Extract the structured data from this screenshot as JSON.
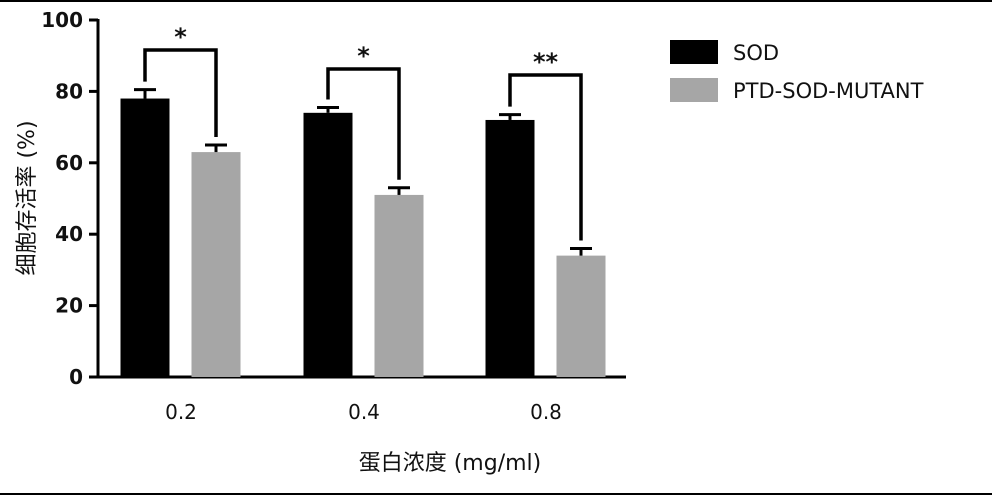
{
  "chart_data": {
    "type": "bar",
    "categories": [
      "0.2",
      "0.4",
      "0.8"
    ],
    "series": [
      {
        "name": "SOD",
        "values": [
          78,
          74,
          72
        ],
        "errors": [
          2.5,
          1.5,
          1.5
        ],
        "color": "#000000"
      },
      {
        "name": "PTD-SOD-MUTANT",
        "values": [
          63,
          51,
          34
        ],
        "errors": [
          2.0,
          2.0,
          2.0
        ],
        "color": "#a6a6a6"
      }
    ],
    "significance": [
      "*",
      "*",
      "**"
    ],
    "xlabel": "蛋白浓度 (mg/ml)",
    "ylabel": "细胞存活率 (%)",
    "ylim": [
      0,
      100
    ],
    "yticks": [
      "0",
      "20",
      "40",
      "60",
      "80",
      "100"
    ],
    "grid": false,
    "legend_position": "top-right"
  }
}
